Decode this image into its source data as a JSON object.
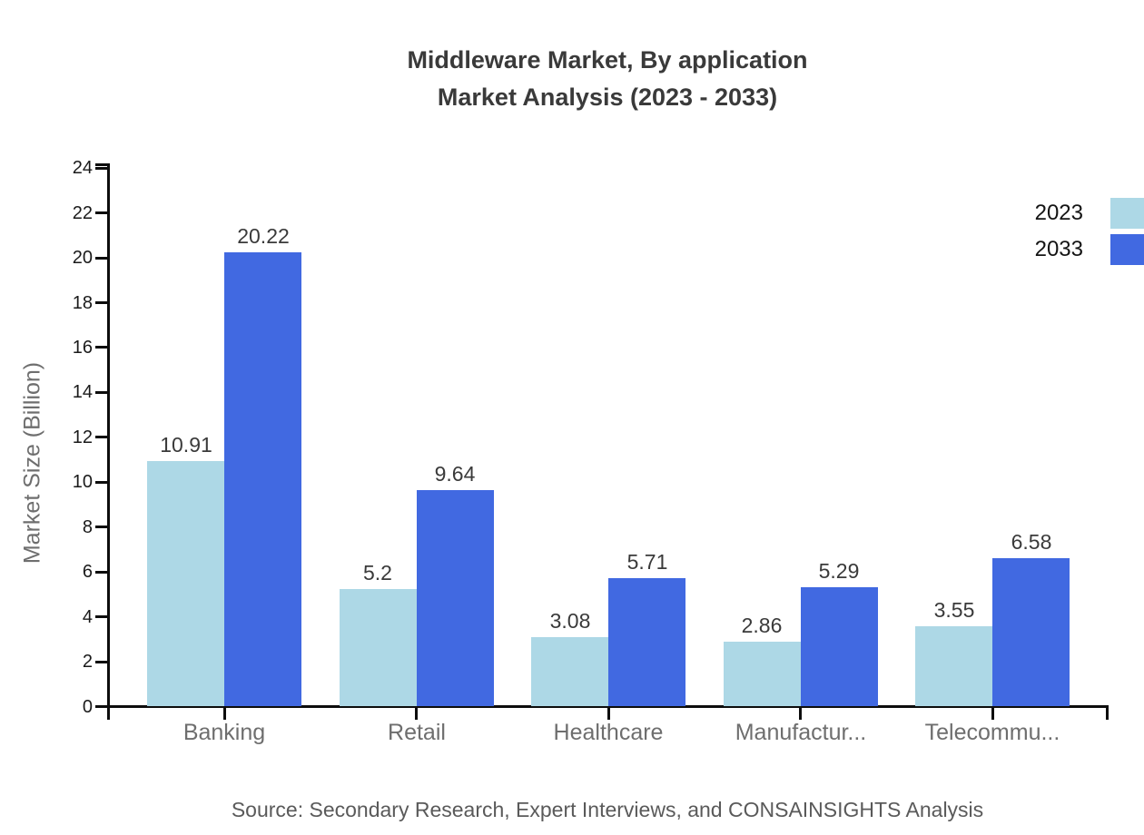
{
  "title": {
    "line1": "Middleware Market, By application",
    "line2": "Market Analysis (2023 - 2033)"
  },
  "source": "Source: Secondary Research, Expert Interviews, and CONSAINSIGHTS Analysis",
  "chart_data": {
    "type": "bar",
    "title": "Middleware Market, By application Market Analysis (2023 - 2033)",
    "categories": [
      "Banking",
      "Retail",
      "Healthcare",
      "Manufactur...",
      "Telecommu..."
    ],
    "series": [
      {
        "name": "2023",
        "color": "#ADD8E6",
        "values": [
          10.91,
          5.2,
          3.08,
          2.86,
          3.55
        ]
      },
      {
        "name": "2033",
        "color": "#4169E1",
        "values": [
          20.22,
          9.64,
          5.71,
          5.29,
          6.58
        ]
      }
    ],
    "xlabel": "",
    "ylabel": "Market Size (Billion)",
    "ylim": [
      0,
      24
    ],
    "ytick_step": 2,
    "grid": false,
    "legend_position": "top-right",
    "axis_color": "#0d0d0d"
  }
}
